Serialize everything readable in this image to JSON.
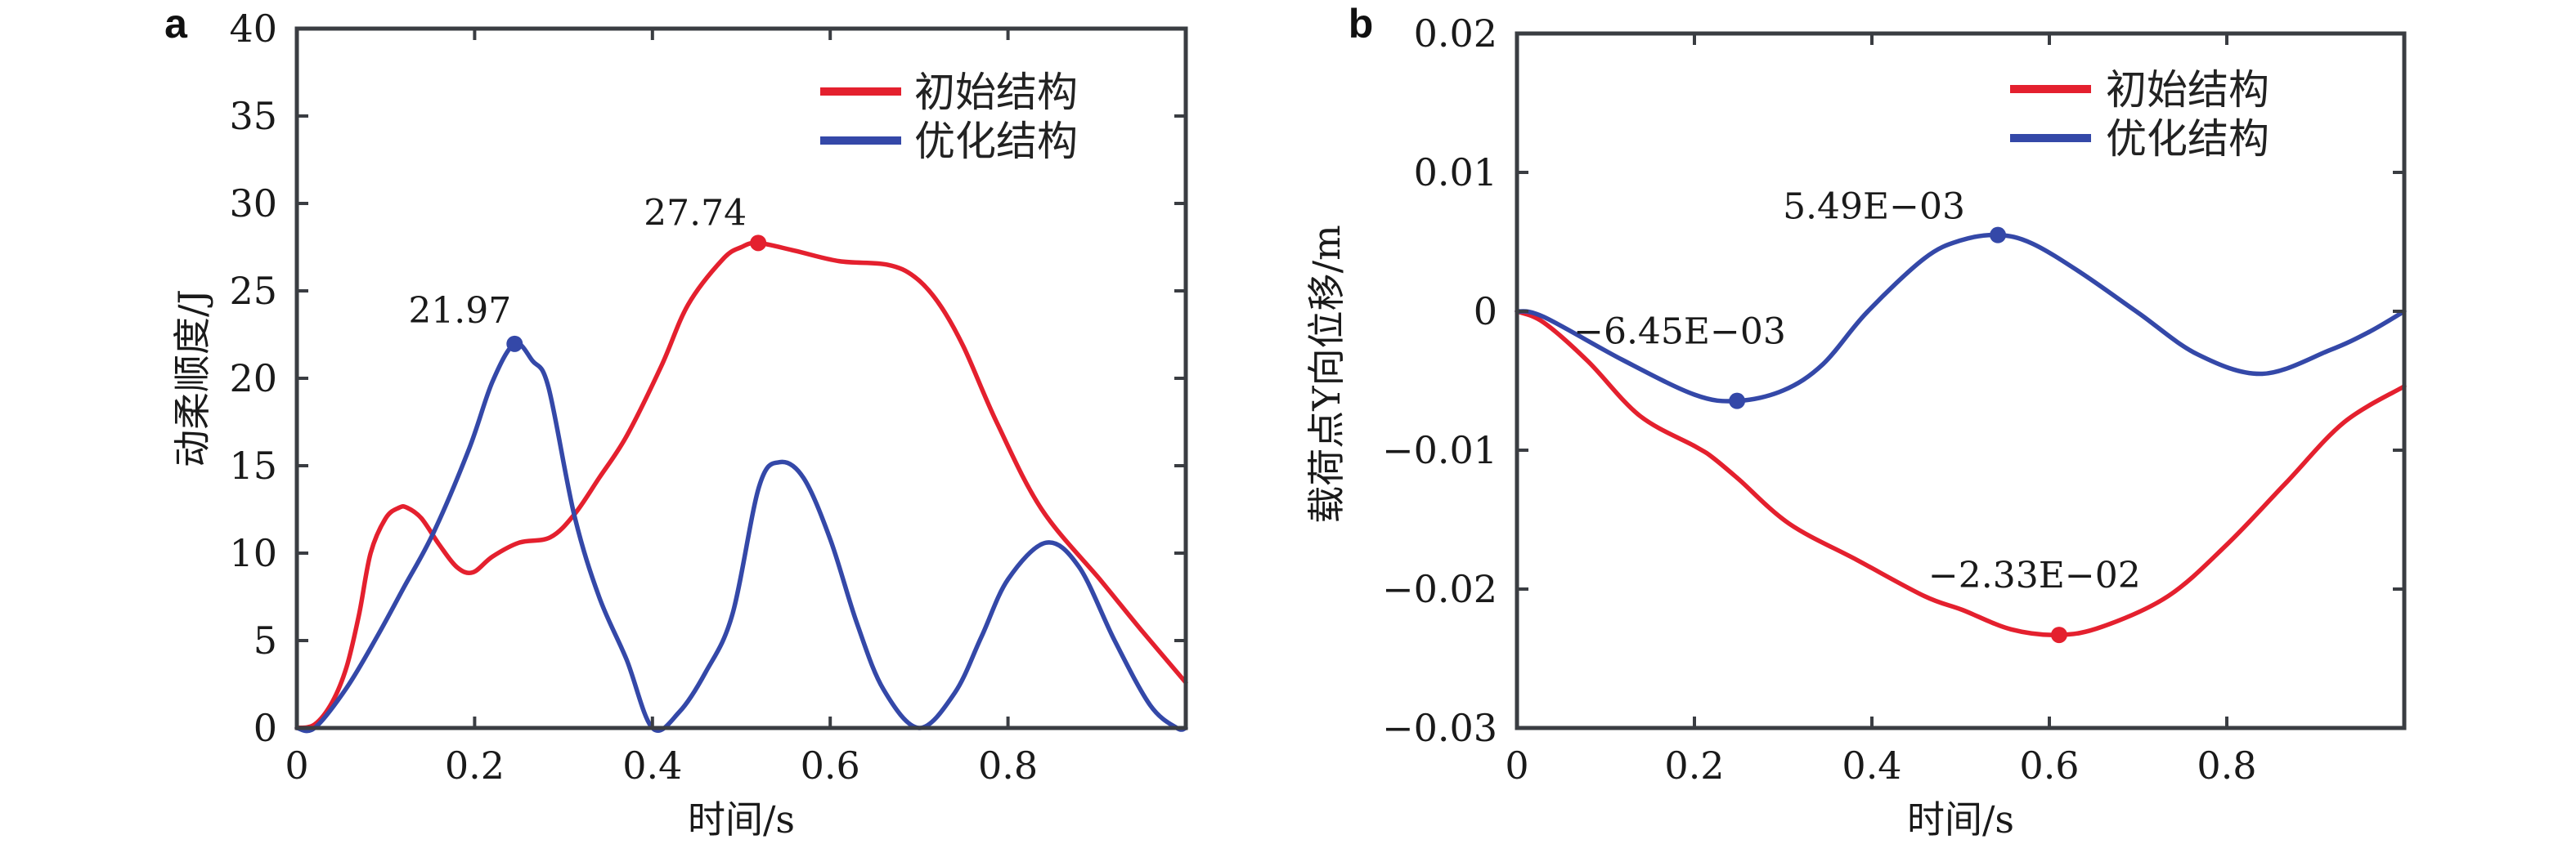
{
  "chart_data": [
    {
      "panel": "a",
      "type": "line",
      "title": "",
      "xlabel": "时间/s",
      "ylabel": "动柔顺度/J",
      "xlim": [
        0,
        1
      ],
      "ylim": [
        0,
        40
      ],
      "xticks": [
        0,
        0.2,
        0.4,
        0.6,
        0.8
      ],
      "xtick_labels": [
        "0",
        "0.2",
        "0.4",
        "0.6",
        "0.8"
      ],
      "yticks": [
        0,
        5,
        10,
        15,
        20,
        25,
        30,
        35,
        40
      ],
      "ytick_labels": [
        "0",
        "5",
        "10",
        "15",
        "20",
        "25",
        "30",
        "35",
        "40"
      ],
      "grid": false,
      "legend_position": "top-right",
      "series": [
        {
          "name": "初始结构",
          "color": "#e4202e",
          "x": [
            0,
            0.02,
            0.04,
            0.056,
            0.07,
            0.083,
            0.1,
            0.115,
            0.124,
            0.14,
            0.16,
            0.18,
            0.198,
            0.22,
            0.25,
            0.285,
            0.312,
            0.34,
            0.371,
            0.41,
            0.44,
            0.479,
            0.5,
            0.519,
            0.56,
            0.61,
            0.664,
            0.695,
            0.722,
            0.75,
            0.788,
            0.838,
            0.905,
            0.95,
            1.0
          ],
          "y": [
            0,
            0.2,
            1.5,
            3.5,
            6.5,
            10.0,
            12.0,
            12.6,
            12.6,
            12.0,
            10.5,
            9.2,
            8.9,
            9.8,
            10.6,
            10.9,
            12.2,
            14.3,
            16.7,
            20.7,
            24.2,
            26.8,
            27.5,
            27.74,
            27.3,
            26.7,
            26.5,
            25.8,
            24.3,
            21.8,
            17.4,
            12.5,
            8.4,
            5.6,
            2.6
          ]
        },
        {
          "name": "优化结构",
          "color": "#3448a8",
          "x": [
            0,
            0.02,
            0.056,
            0.09,
            0.12,
            0.154,
            0.194,
            0.22,
            0.245,
            0.265,
            0.283,
            0.312,
            0.34,
            0.371,
            0.4,
            0.43,
            0.46,
            0.49,
            0.52,
            0.543,
            0.57,
            0.6,
            0.63,
            0.66,
            0.7,
            0.74,
            0.77,
            0.8,
            0.843,
            0.88,
            0.92,
            0.96,
            0.99,
            1.0
          ],
          "y": [
            0,
            0,
            2.3,
            5.2,
            8.0,
            11.2,
            16.0,
            19.8,
            21.97,
            21.0,
            19.5,
            12.2,
            7.5,
            3.9,
            0,
            0.9,
            3.2,
            6.5,
            13.8,
            15.2,
            14.3,
            10.8,
            6.0,
            2.2,
            0,
            2.0,
            5.2,
            8.5,
            10.6,
            9.2,
            5.0,
            1.3,
            0,
            0
          ]
        }
      ],
      "annotations": [
        {
          "label": "21.97",
          "series": "优化结构",
          "x": 0.245,
          "y": 21.97
        },
        {
          "label": "27.74",
          "series": "初始结构",
          "x": 0.519,
          "y": 27.74
        }
      ]
    },
    {
      "panel": "b",
      "type": "line",
      "title": "",
      "xlabel": "时间/s",
      "ylabel": "载荷点Y向位移/m",
      "xlim": [
        0,
        1
      ],
      "ylim": [
        -0.03,
        0.02
      ],
      "xticks": [
        0,
        0.2,
        0.4,
        0.6,
        0.8
      ],
      "xtick_labels": [
        "0",
        "0.2",
        "0.4",
        "0.6",
        "0.8"
      ],
      "yticks": [
        -0.03,
        -0.02,
        -0.01,
        0,
        0.01,
        0.02
      ],
      "ytick_labels": [
        "−0.03",
        "−0.02",
        "−0.01",
        "0",
        "0.01",
        "0.02"
      ],
      "grid": false,
      "legend_position": "top-right",
      "series": [
        {
          "name": "初始结构",
          "color": "#e4202e",
          "x": [
            0,
            0.03,
            0.08,
            0.138,
            0.2,
            0.22,
            0.25,
            0.307,
            0.383,
            0.459,
            0.502,
            0.557,
            0.611,
            0.66,
            0.734,
            0.8,
            0.866,
            0.932,
            1.0
          ],
          "y": [
            0,
            -0.0008,
            -0.0036,
            -0.0075,
            -0.0097,
            -0.0105,
            -0.0121,
            -0.0153,
            -0.0179,
            -0.0205,
            -0.0215,
            -0.0229,
            -0.0233,
            -0.0227,
            -0.0205,
            -0.0168,
            -0.0124,
            -0.008,
            -0.0054
          ]
        },
        {
          "name": "优化结构",
          "color": "#3448a8",
          "x": [
            0,
            0.03,
            0.119,
            0.2,
            0.248,
            0.3,
            0.345,
            0.394,
            0.459,
            0.5,
            0.542,
            0.58,
            0.635,
            0.7,
            0.767,
            0.84,
            0.916,
            0.96,
            1.0
          ],
          "y": [
            0,
            -0.0004,
            -0.0035,
            -0.006,
            -0.00645,
            -0.0057,
            -0.0038,
            -0.0001,
            0.0038,
            0.0051,
            0.00549,
            0.0049,
            0.0028,
            -0.0001,
            -0.0031,
            -0.0045,
            -0.0028,
            -0.0015,
            0
          ]
        }
      ],
      "annotations": [
        {
          "label": "−6.45E−03",
          "series": "优化结构",
          "x": 0.248,
          "y": -0.00645
        },
        {
          "label": "5.49E−03",
          "series": "优化结构",
          "x": 0.542,
          "y": 0.00549
        },
        {
          "label": "−2.33E−02",
          "series": "初始结构",
          "x": 0.611,
          "y": -0.0233
        }
      ]
    }
  ]
}
